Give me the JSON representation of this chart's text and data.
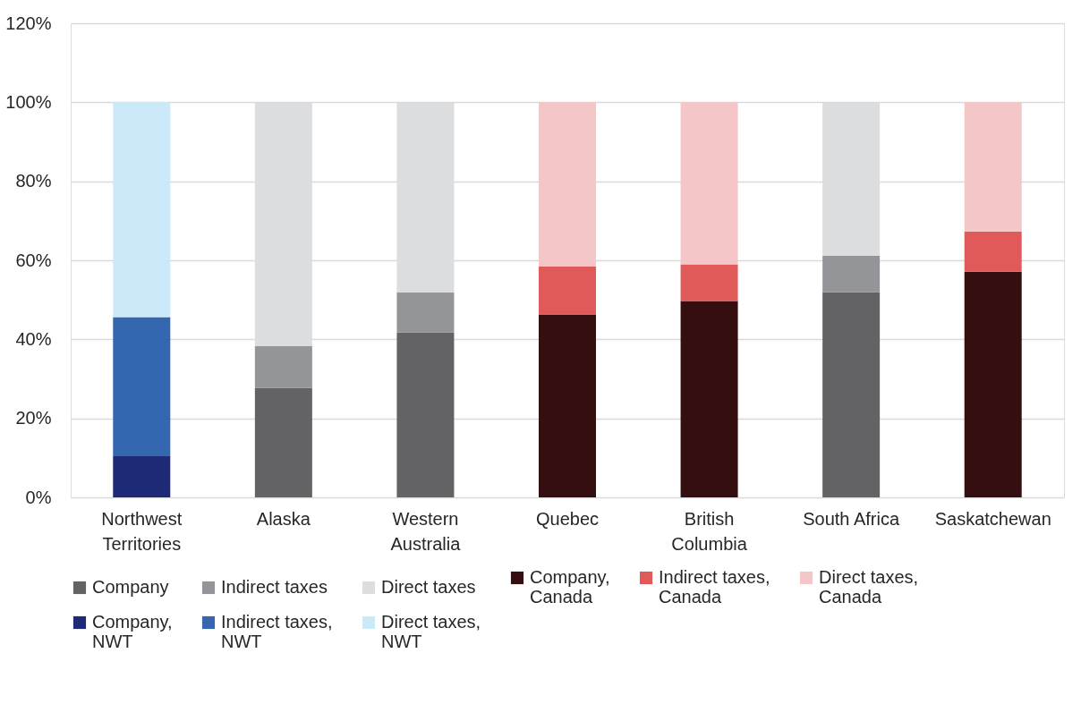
{
  "chart_data": {
    "type": "bar",
    "stacked": true,
    "categories": [
      "Northwest Territories",
      "Alaska",
      "Western Australia",
      "Quebec",
      "British Columbia",
      "South Africa",
      "Saskatchewan"
    ],
    "series": [
      {
        "name": "Company",
        "color": "#636365",
        "values": [
          null,
          27.7,
          41.7,
          null,
          null,
          51.9,
          null
        ]
      },
      {
        "name": "Indirect taxes",
        "color": "#949598",
        "values": [
          null,
          10.6,
          10.2,
          null,
          null,
          9.3,
          null
        ]
      },
      {
        "name": "Direct taxes",
        "color": "#dcdddf",
        "values": [
          null,
          61.7,
          48.1,
          null,
          null,
          38.8,
          null
        ]
      },
      {
        "name": "Company, Canada",
        "color": "#350f0f",
        "values": [
          null,
          null,
          null,
          46.3,
          49.7,
          null,
          57.1
        ]
      },
      {
        "name": "Indirect taxes, Canada",
        "color": "#e05a5a",
        "values": [
          null,
          null,
          null,
          12.2,
          9.3,
          null,
          10.2
        ]
      },
      {
        "name": "Direct taxes, Canada",
        "color": "#f5c6c7",
        "values": [
          null,
          null,
          null,
          41.5,
          41.0,
          null,
          32.7
        ]
      },
      {
        "name": "Company, NWT",
        "color": "#1f2a77",
        "values": [
          10.4,
          null,
          null,
          null,
          null,
          null,
          null
        ]
      },
      {
        "name": "Indirect taxes, NWT",
        "color": "#3566b0",
        "values": [
          35.2,
          null,
          null,
          null,
          null,
          null,
          null
        ]
      },
      {
        "name": "Direct taxes, NWT",
        "color": "#cbe9f9",
        "values": [
          54.4,
          null,
          null,
          null,
          null,
          null,
          null
        ]
      }
    ],
    "ylim": [
      0,
      120
    ],
    "yticks": [
      {
        "value": 0,
        "label": "0%"
      },
      {
        "value": 20,
        "label": "20%"
      },
      {
        "value": 40,
        "label": "40%"
      },
      {
        "value": 60,
        "label": "60%"
      },
      {
        "value": 80,
        "label": "80%"
      },
      {
        "value": 100,
        "label": "100%"
      },
      {
        "value": 120,
        "label": "120%"
      }
    ],
    "grid": "y",
    "legend": "bottom"
  }
}
